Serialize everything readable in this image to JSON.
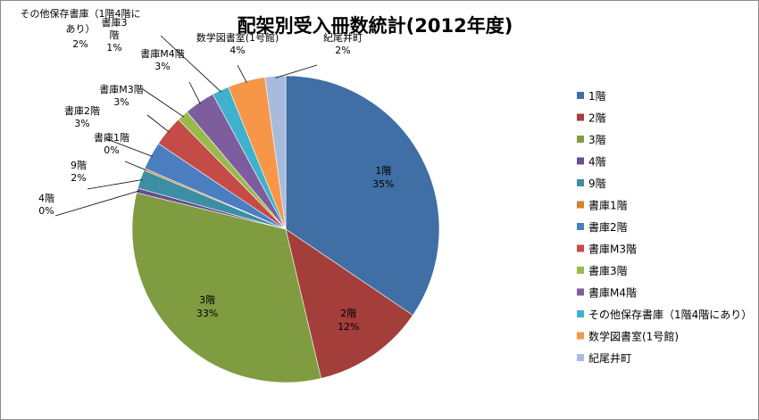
{
  "chart_data": {
    "type": "pie",
    "title": "配架別受入冊数統計(2012年度)",
    "slices": [
      {
        "name": "1階",
        "percent_label": "35%",
        "value": 35.0,
        "color": "#3f6fa4"
      },
      {
        "name": "2階",
        "percent_label": "12%",
        "value": 12.0,
        "color": "#a43e3b"
      },
      {
        "name": "3階",
        "percent_label": "33%",
        "value": 33.0,
        "color": "#7f9c41"
      },
      {
        "name": "4階",
        "percent_label": "0%",
        "value": 0.5,
        "color": "#6a4e8e"
      },
      {
        "name": "9階",
        "percent_label": "2%",
        "value": 2.0,
        "color": "#3c8ea4"
      },
      {
        "name": "書庫1階",
        "percent_label": "0%",
        "value": 0.2,
        "color": "#d7822f"
      },
      {
        "name": "書庫2階",
        "percent_label": "3%",
        "value": 3.0,
        "color": "#4a7ec1"
      },
      {
        "name": "書庫M3階",
        "percent_label": "3%",
        "value": 3.3,
        "color": "#c54b47"
      },
      {
        "name": "書庫3階",
        "percent_label": "1%",
        "value": 1.2,
        "color": "#98ba4d"
      },
      {
        "name": "書庫M4階",
        "percent_label": "3%",
        "value": 3.3,
        "color": "#7e5d9f"
      },
      {
        "name": "その他保存書庫（1階4階にあり）",
        "percent_label": "2%",
        "value": 1.8,
        "color": "#3fb1cc"
      },
      {
        "name": "数学図書室(1号館)",
        "percent_label": "4%",
        "value": 4.0,
        "color": "#f79647"
      },
      {
        "name": "紀尾井町",
        "percent_label": "2%",
        "value": 2.2,
        "color": "#a9bbdd"
      }
    ],
    "legend_position": "right"
  }
}
